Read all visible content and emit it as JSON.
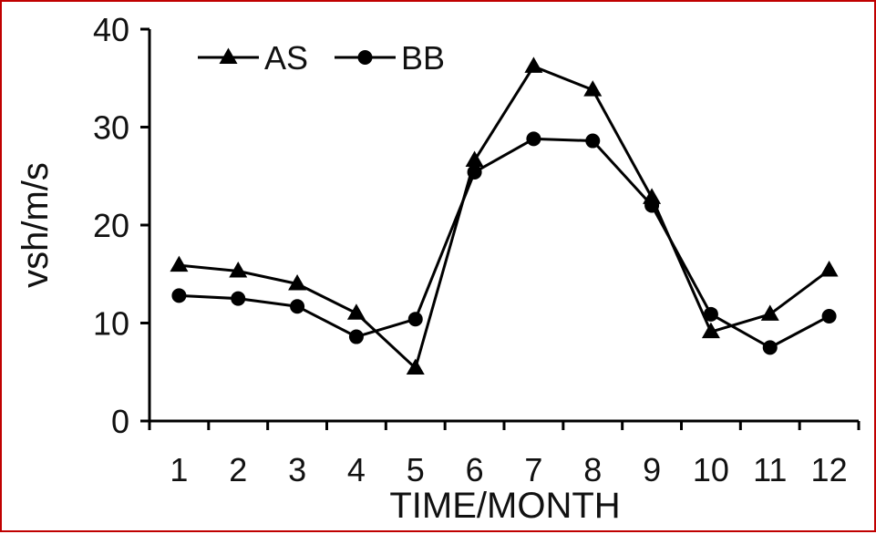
{
  "frame": {
    "border_color": "#c00000"
  },
  "chart_data": {
    "type": "line",
    "categories": [
      "1",
      "2",
      "3",
      "4",
      "5",
      "6",
      "7",
      "8",
      "9",
      "10",
      "11",
      "12"
    ],
    "series": [
      {
        "name": "AS",
        "marker": "triangle",
        "color": "#000000",
        "values": [
          15.9,
          15.3,
          14.0,
          11.0,
          5.4,
          26.6,
          36.2,
          33.8,
          22.8,
          9.1,
          10.9,
          15.4
        ]
      },
      {
        "name": "BB",
        "marker": "circle",
        "color": "#000000",
        "values": [
          12.8,
          12.5,
          11.7,
          8.6,
          10.4,
          25.4,
          28.8,
          28.6,
          22.0,
          10.9,
          7.5,
          10.7
        ]
      }
    ],
    "xlabel": "TIME/MONTH",
    "ylabel": "vsh/m/s",
    "ylim": [
      0,
      40
    ],
    "yticks": [
      "0",
      "10",
      "20",
      "30",
      "40"
    ],
    "grid": false,
    "legend_position": "top-left"
  }
}
